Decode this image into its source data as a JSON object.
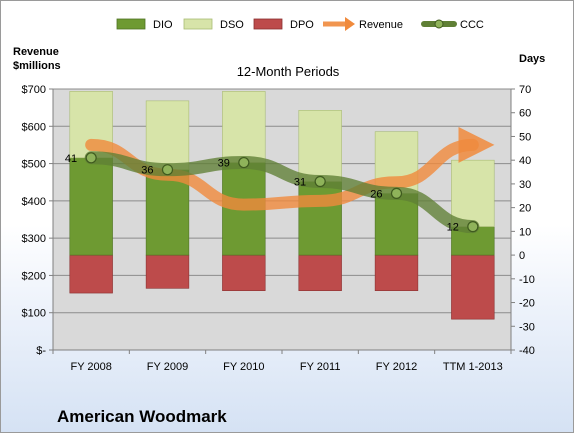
{
  "company_name": "American Woodmark",
  "chart_data": {
    "type": "bar",
    "subtitle": "12-Month Periods",
    "left_axis": {
      "label": "Revenue\n$millions",
      "ylim": [
        0,
        700
      ],
      "ticks": [
        0,
        100,
        200,
        300,
        400,
        500,
        600,
        700
      ],
      "tick_labels": [
        "$-",
        "$100",
        "$200",
        "$300",
        "$400",
        "$500",
        "$600",
        "$700"
      ]
    },
    "right_axis": {
      "label": "Days",
      "ylim": [
        -40,
        70
      ],
      "ticks": [
        -40,
        -30,
        -20,
        -10,
        0,
        10,
        20,
        30,
        40,
        50,
        60,
        70
      ],
      "tick_labels": [
        "-40",
        "-30",
        "-20",
        "-10",
        "0",
        "10",
        "20",
        "30",
        "40",
        "50",
        "60",
        "70"
      ]
    },
    "categories": [
      "FY 2008",
      "FY 2009",
      "FY 2010",
      "FY 2011",
      "FY 2012",
      "TTM 1-2013"
    ],
    "legend_position": "top",
    "grid": true,
    "series": [
      {
        "name": "DIO",
        "type": "stacked-bar",
        "axis": "right",
        "color": "#6e9a32",
        "values": [
          41,
          36,
          39,
          31,
          26,
          12
        ]
      },
      {
        "name": "DSO",
        "type": "stacked-bar",
        "axis": "right",
        "color": "#d7e4a9",
        "values": [
          28,
          29,
          30,
          30,
          26,
          28
        ]
      },
      {
        "name": "DPO",
        "type": "stacked-bar",
        "axis": "right",
        "color": "#bd4b4b",
        "values": [
          -16,
          -14,
          -15,
          -15,
          -15,
          -27
        ]
      },
      {
        "name": "Revenue",
        "type": "arrow-line",
        "axis": "left",
        "color": "#f08a3c",
        "values": [
          550,
          470,
          390,
          400,
          450,
          550
        ]
      },
      {
        "name": "CCC",
        "type": "line",
        "axis": "right",
        "color": "#5f7f35",
        "values": [
          41,
          36,
          39,
          31,
          26,
          12
        ],
        "data_labels": [
          "41",
          "36",
          "39",
          "31",
          "26",
          "12"
        ]
      }
    ]
  }
}
